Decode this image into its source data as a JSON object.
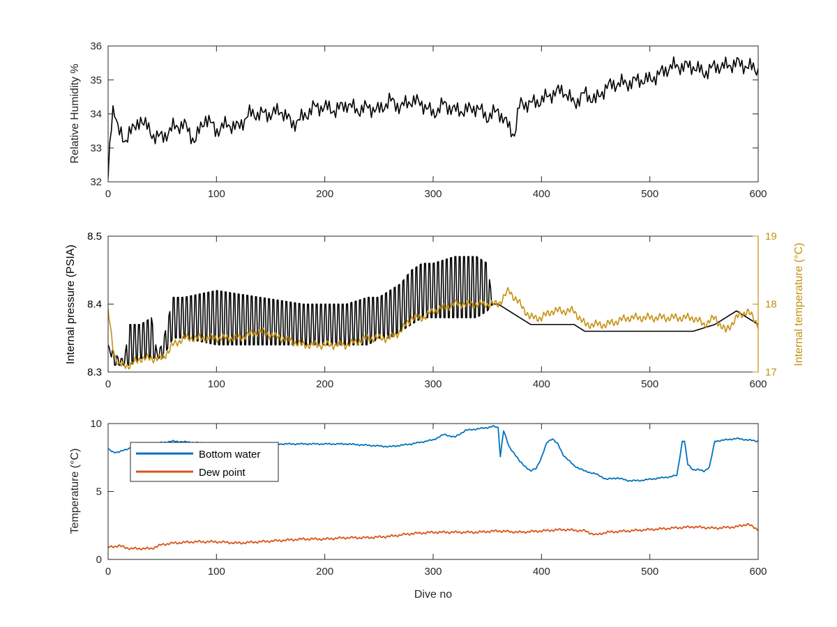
{
  "chart_data": [
    {
      "type": "line",
      "ylabel": "Relative Humidity %",
      "xlim": [
        0,
        600
      ],
      "ylim": [
        32,
        36
      ],
      "xticks": [
        "0",
        "100",
        "200",
        "300",
        "400",
        "500",
        "600"
      ],
      "yticks": [
        "32",
        "33",
        "34",
        "35",
        "36"
      ],
      "series": [
        {
          "color": "#000000",
          "x": [
            0,
            2,
            5,
            10,
            15,
            20,
            25,
            30,
            40,
            50,
            60,
            70,
            80,
            90,
            100,
            110,
            120,
            130,
            140,
            150,
            160,
            170,
            180,
            190,
            200,
            210,
            220,
            230,
            240,
            250,
            260,
            270,
            280,
            290,
            300,
            310,
            320,
            330,
            340,
            350,
            360,
            370,
            375,
            380,
            390,
            400,
            410,
            420,
            430,
            440,
            450,
            460,
            470,
            480,
            490,
            500,
            510,
            520,
            530,
            540,
            550,
            560,
            570,
            580,
            590,
            600
          ],
          "values": [
            32.0,
            33.3,
            34.3,
            33.5,
            33.1,
            33.6,
            33.5,
            33.9,
            33.4,
            33.3,
            33.6,
            33.7,
            33.2,
            33.9,
            33.5,
            33.7,
            33.6,
            34.0,
            34.0,
            34.0,
            34.1,
            33.7,
            33.9,
            34.2,
            34.2,
            34.1,
            34.3,
            34.1,
            34.2,
            34.1,
            34.4,
            34.2,
            34.4,
            34.3,
            34.0,
            34.3,
            34.1,
            34.1,
            34.2,
            33.9,
            34.1,
            33.6,
            33.4,
            34.3,
            34.3,
            34.4,
            34.6,
            34.7,
            34.3,
            34.6,
            34.4,
            34.8,
            34.9,
            34.9,
            35.0,
            35.0,
            35.2,
            35.4,
            35.4,
            35.4,
            35.2,
            35.4,
            35.4,
            35.5,
            35.4,
            35.3
          ]
        }
      ]
    },
    {
      "type": "line",
      "ylabel": "Internal pressure (PSIA)",
      "y2label": "Internal temperature (°C)",
      "xlim": [
        0,
        600
      ],
      "ylim": [
        8.3,
        8.5
      ],
      "y2lim": [
        17,
        19
      ],
      "xticks": [
        "0",
        "100",
        "200",
        "300",
        "400",
        "500",
        "600"
      ],
      "yticks": [
        "8.3",
        "8.4",
        "8.5"
      ],
      "y2ticks": [
        "17",
        "18",
        "19"
      ],
      "series": [
        {
          "axis": "left",
          "color": "#000000",
          "x": [
            0,
            5,
            10,
            15,
            20,
            30,
            40,
            45,
            50,
            60,
            70,
            100,
            140,
            180,
            200,
            220,
            240,
            250,
            260,
            270,
            280,
            290,
            300,
            320,
            340,
            350,
            355,
            360,
            370,
            380,
            390,
            400,
            420,
            430,
            440,
            460,
            480,
            500,
            520,
            540,
            560,
            580,
            600
          ],
          "values": [
            8.34,
            8.32,
            8.31,
            8.31,
            8.32,
            8.33,
            8.33,
            8.32,
            8.33,
            8.36,
            8.38,
            8.38,
            8.38,
            8.37,
            8.37,
            8.37,
            8.37,
            8.37,
            8.38,
            8.39,
            8.41,
            8.42,
            8.42,
            8.42,
            8.42,
            8.4,
            8.4,
            8.4,
            8.39,
            8.38,
            8.37,
            8.37,
            8.37,
            8.37,
            8.36,
            8.36,
            8.36,
            8.36,
            8.36,
            8.36,
            8.37,
            8.39,
            8.37
          ],
          "upper": [
            8.34,
            8.33,
            8.32,
            8.32,
            8.37,
            8.37,
            8.38,
            8.33,
            8.34,
            8.41,
            8.41,
            8.42,
            8.41,
            8.4,
            8.4,
            8.4,
            8.41,
            8.41,
            8.42,
            8.43,
            8.45,
            8.46,
            8.46,
            8.47,
            8.47,
            8.46,
            8.4,
            8.4,
            8.39,
            8.38,
            8.37,
            8.37,
            8.37,
            8.37,
            8.36,
            8.36,
            8.36,
            8.36,
            8.36,
            8.36,
            8.37,
            8.39,
            8.37
          ],
          "lower": [
            8.34,
            8.31,
            8.31,
            8.31,
            8.31,
            8.32,
            8.32,
            8.32,
            8.32,
            8.35,
            8.35,
            8.34,
            8.34,
            8.34,
            8.34,
            8.34,
            8.34,
            8.35,
            8.35,
            8.36,
            8.37,
            8.38,
            8.38,
            8.38,
            8.38,
            8.39,
            8.4,
            8.4,
            8.39,
            8.38,
            8.37,
            8.37,
            8.37,
            8.37,
            8.36,
            8.36,
            8.36,
            8.36,
            8.36,
            8.36,
            8.37,
            8.39,
            8.37
          ]
        },
        {
          "axis": "right",
          "color": "#c5900f",
          "x": [
            0,
            5,
            10,
            20,
            30,
            40,
            50,
            60,
            70,
            80,
            100,
            120,
            140,
            160,
            180,
            200,
            220,
            240,
            260,
            270,
            280,
            290,
            300,
            320,
            340,
            350,
            355,
            360,
            365,
            370,
            380,
            390,
            400,
            410,
            420,
            430,
            440,
            460,
            480,
            500,
            520,
            540,
            550,
            560,
            570,
            580,
            590,
            600
          ],
          "values": [
            17.9,
            17.3,
            17.1,
            17.1,
            17.2,
            17.2,
            17.2,
            17.4,
            17.5,
            17.5,
            17.5,
            17.5,
            17.6,
            17.5,
            17.4,
            17.4,
            17.4,
            17.5,
            17.5,
            17.6,
            17.8,
            17.8,
            17.9,
            18.0,
            18.0,
            18.0,
            18.0,
            18.0,
            18.1,
            18.2,
            18.0,
            17.8,
            17.8,
            17.9,
            17.9,
            17.9,
            17.7,
            17.7,
            17.8,
            17.8,
            17.8,
            17.8,
            17.7,
            17.8,
            17.6,
            17.8,
            17.9,
            17.7
          ]
        }
      ]
    },
    {
      "type": "line",
      "xlabel": "Dive no",
      "ylabel": "Temperature (°C)",
      "xlim": [
        0,
        600
      ],
      "ylim": [
        0,
        10
      ],
      "xticks": [
        "0",
        "100",
        "200",
        "300",
        "400",
        "500",
        "600"
      ],
      "yticks": [
        "0",
        "5",
        "10"
      ],
      "legend": {
        "position": "top-left",
        "entries": [
          "Bottom water",
          "Dew point"
        ]
      },
      "series": [
        {
          "name": "Bottom water",
          "color": "#0072bd",
          "x": [
            0,
            5,
            10,
            20,
            40,
            60,
            80,
            100,
            120,
            140,
            160,
            180,
            200,
            220,
            240,
            260,
            280,
            300,
            310,
            320,
            330,
            340,
            350,
            355,
            360,
            362,
            365,
            370,
            375,
            380,
            390,
            395,
            400,
            405,
            410,
            415,
            420,
            430,
            440,
            450,
            460,
            470,
            480,
            490,
            500,
            510,
            520,
            525,
            530,
            532,
            535,
            540,
            545,
            550,
            555,
            560,
            570,
            580,
            590,
            600
          ],
          "values": [
            8.1,
            7.9,
            7.9,
            8.2,
            8.5,
            8.7,
            8.6,
            8.5,
            8.5,
            8.5,
            8.5,
            8.5,
            8.5,
            8.5,
            8.4,
            8.3,
            8.5,
            8.8,
            9.2,
            9.0,
            9.5,
            9.6,
            9.7,
            9.8,
            9.7,
            7.6,
            9.5,
            8.3,
            7.8,
            7.2,
            6.5,
            6.7,
            7.5,
            8.6,
            8.9,
            8.5,
            7.7,
            6.9,
            6.5,
            6.3,
            5.9,
            6.0,
            5.8,
            5.8,
            5.9,
            6.0,
            6.1,
            6.2,
            8.7,
            8.7,
            7.0,
            6.6,
            6.6,
            6.5,
            6.8,
            8.7,
            8.8,
            8.9,
            8.8,
            8.7
          ]
        },
        {
          "name": "Dew point",
          "color": "#d95319",
          "x": [
            0,
            10,
            20,
            40,
            50,
            60,
            80,
            100,
            120,
            140,
            160,
            180,
            200,
            220,
            240,
            260,
            280,
            300,
            320,
            340,
            360,
            380,
            400,
            420,
            440,
            450,
            460,
            480,
            500,
            520,
            540,
            560,
            580,
            590,
            600
          ],
          "values": [
            0.9,
            1.0,
            0.8,
            0.8,
            1.1,
            1.2,
            1.3,
            1.3,
            1.2,
            1.3,
            1.4,
            1.5,
            1.5,
            1.6,
            1.6,
            1.7,
            1.9,
            2.0,
            2.0,
            2.0,
            2.1,
            2.0,
            2.1,
            2.2,
            2.1,
            1.8,
            2.0,
            2.1,
            2.2,
            2.3,
            2.4,
            2.3,
            2.4,
            2.6,
            2.2
          ]
        }
      ]
    }
  ]
}
